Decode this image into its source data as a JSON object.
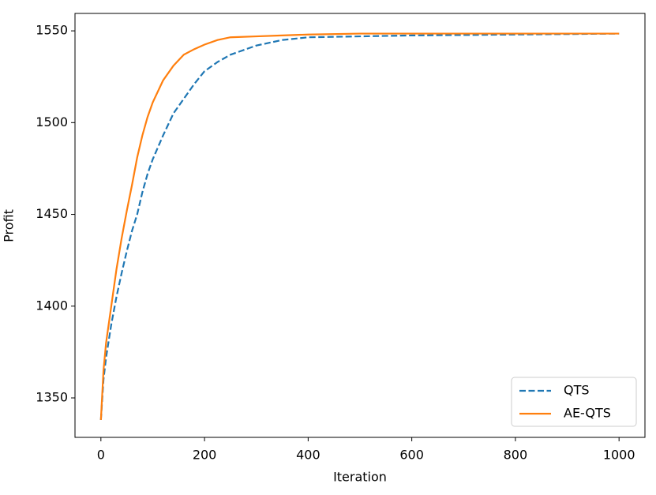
{
  "chart_data": {
    "type": "line",
    "x_label": "Iteration",
    "y_label": "Profit",
    "x": [
      0,
      5,
      10,
      20,
      30,
      40,
      50,
      60,
      70,
      80,
      90,
      100,
      120,
      140,
      160,
      180,
      200,
      225,
      250,
      300,
      350,
      400,
      500,
      600,
      800,
      1000
    ],
    "series": [
      {
        "name": "QTS",
        "color": "#1f77b4",
        "linestyle": "dashed",
        "values": [
          1338,
          1360,
          1372,
          1390,
          1405,
          1418,
          1430,
          1441,
          1450,
          1462,
          1472,
          1480,
          1493,
          1505,
          1513,
          1521,
          1528,
          1533,
          1537,
          1542,
          1545,
          1546.5,
          1547,
          1547.5,
          1548,
          1548.5
        ]
      },
      {
        "name": "AE-QTS",
        "color": "#ff7f0e",
        "linestyle": "solid",
        "values": [
          1338,
          1365,
          1380,
          1400,
          1420,
          1437,
          1452,
          1466,
          1481,
          1493,
          1503,
          1511,
          1523,
          1531,
          1537,
          1540,
          1542.5,
          1545,
          1546.5,
          1547,
          1547.5,
          1548,
          1548.5,
          1548.5,
          1548.5,
          1548.5
        ]
      }
    ],
    "xlim": [
      -50,
      1050
    ],
    "ylim": [
      1328.5,
      1559.5
    ],
    "xticks": [
      0,
      200,
      400,
      600,
      800,
      1000
    ],
    "yticks": [
      1350,
      1400,
      1450,
      1500,
      1550
    ],
    "grid": false,
    "legend": "lower right"
  }
}
